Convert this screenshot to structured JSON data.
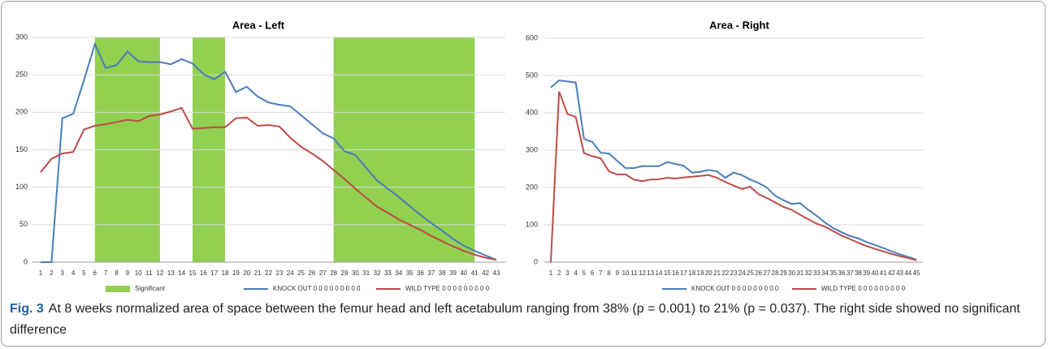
{
  "chart_data": [
    {
      "type": "line",
      "title": "Area - Left",
      "categories": [
        "1",
        "2",
        "3",
        "4",
        "5",
        "6",
        "7",
        "8",
        "9",
        "10",
        "11",
        "12",
        "13",
        "14",
        "15",
        "16",
        "17",
        "18",
        "19",
        "20",
        "21",
        "22",
        "23",
        "24",
        "25",
        "26",
        "27",
        "28",
        "29",
        "30",
        "31",
        "32",
        "33",
        "34",
        "35",
        "36",
        "37",
        "38",
        "39",
        "40",
        "41",
        "42",
        "43"
      ],
      "ylim": [
        0,
        300
      ],
      "yticks": [
        0,
        50,
        100,
        150,
        200,
        250,
        300
      ],
      "grid": true,
      "bands": {
        "name": "Significant",
        "color": "#92d050",
        "spans": [
          [
            6,
            12
          ],
          [
            15,
            18
          ],
          [
            28,
            41
          ]
        ]
      },
      "series": [
        {
          "name": "KNOCK OUT 0 0 0 0 0 0 0 0 0",
          "color": "#4a7ebb",
          "values": [
            0,
            0,
            192,
            198,
            243,
            291,
            259,
            263,
            281,
            268,
            267,
            267,
            264,
            271,
            265,
            251,
            244,
            254,
            227,
            234,
            221,
            213,
            210,
            208,
            196,
            184,
            172,
            165,
            148,
            143,
            126,
            109,
            98,
            87,
            75,
            63,
            52,
            42,
            31,
            22,
            15,
            9,
            3
          ]
        },
        {
          "name": "WILD TYPE 0 0 0 0 0 0 0 0 0",
          "color": "#be4b48",
          "values": [
            120,
            138,
            145,
            147,
            177,
            182,
            184,
            187,
            190,
            188,
            195,
            197,
            201,
            206,
            178,
            179,
            180,
            180,
            192,
            193,
            182,
            183,
            181,
            166,
            154,
            145,
            135,
            123,
            111,
            98,
            86,
            74,
            66,
            57,
            50,
            43,
            35,
            28,
            21,
            15,
            10,
            6,
            3
          ]
        }
      ]
    },
    {
      "type": "line",
      "title": "Area - Right",
      "categories": [
        "1",
        "2",
        "3",
        "4",
        "5",
        "6",
        "7",
        "8",
        "9",
        "10",
        "11",
        "12",
        "13",
        "14",
        "15",
        "16",
        "17",
        "18",
        "19",
        "20",
        "21",
        "22",
        "23",
        "24",
        "25",
        "26",
        "27",
        "28",
        "29",
        "30",
        "31",
        "32",
        "33",
        "34",
        "35",
        "36",
        "37",
        "38",
        "39",
        "40",
        "41",
        "42",
        "43",
        "44",
        "45"
      ],
      "ylim": [
        0,
        600
      ],
      "yticks": [
        0,
        100,
        200,
        300,
        400,
        500,
        600
      ],
      "grid": true,
      "series": [
        {
          "name": "KNOCK OUT 0 0 0 0 0 0 0 0 0",
          "color": "#4a7ebb",
          "values": [
            468,
            487,
            484,
            481,
            330,
            322,
            293,
            291,
            271,
            252,
            252,
            257,
            257,
            257,
            268,
            263,
            258,
            240,
            242,
            247,
            243,
            226,
            240,
            233,
            221,
            212,
            200,
            178,
            166,
            156,
            158,
            140,
            124,
            106,
            91,
            80,
            70,
            64,
            54,
            46,
            38,
            29,
            21,
            14,
            7
          ]
        },
        {
          "name": "WILD TYPE 0 0 0 0 0 0 0 0 0",
          "color": "#be4b48",
          "values": [
            0,
            457,
            397,
            389,
            292,
            284,
            278,
            243,
            235,
            235,
            221,
            217,
            221,
            222,
            226,
            224,
            227,
            229,
            231,
            233,
            226,
            215,
            205,
            196,
            202,
            182,
            172,
            160,
            148,
            140,
            127,
            115,
            103,
            95,
            83,
            71,
            62,
            52,
            43,
            36,
            29,
            22,
            16,
            11,
            5
          ]
        }
      ]
    }
  ],
  "caption": {
    "label": "Fig. 3",
    "text": "At 8 weeks normalized area of space between the femur head and left acetabulum ranging from 38% (p = 0.001) to 21% (p = 0.037). The right side showed no significant difference"
  }
}
